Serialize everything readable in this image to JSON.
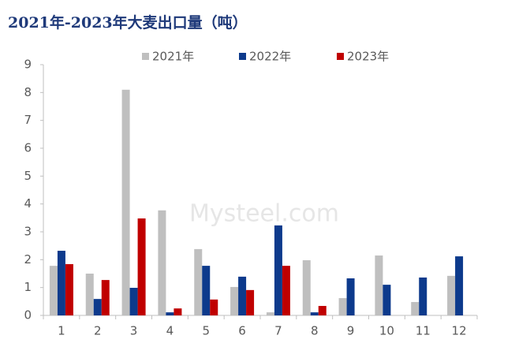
{
  "chart_data": {
    "type": "bar",
    "title": "2021年-2023年大麦出口量（吨）",
    "watermark": "Mysteel.com",
    "categories": [
      "1",
      "2",
      "3",
      "4",
      "5",
      "6",
      "7",
      "8",
      "9",
      "10",
      "11",
      "12"
    ],
    "series": [
      {
        "name": "2021年",
        "color": "#bfbfbf",
        "values": [
          1.78,
          1.5,
          8.1,
          3.77,
          2.38,
          1.02,
          0.11,
          1.98,
          0.62,
          2.15,
          0.48,
          1.42
        ]
      },
      {
        "name": "2022年",
        "color": "#0d3a8c",
        "values": [
          2.32,
          0.59,
          0.99,
          0.11,
          1.78,
          1.39,
          3.23,
          0.11,
          1.33,
          1.1,
          1.36,
          2.12
        ]
      },
      {
        "name": "2023年",
        "color": "#c00000",
        "values": [
          1.84,
          1.27,
          3.48,
          0.25,
          0.57,
          0.91,
          1.78,
          0.34,
          null,
          null,
          null,
          null
        ]
      }
    ],
    "ylim": [
      0,
      9
    ],
    "yticks": [
      0,
      1,
      2,
      3,
      4,
      5,
      6,
      7,
      8,
      9
    ],
    "grid": false
  }
}
